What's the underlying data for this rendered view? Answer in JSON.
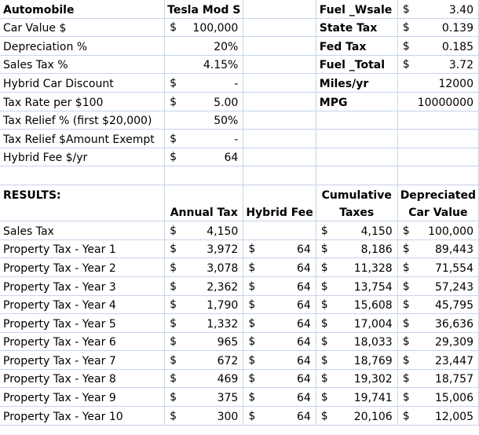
{
  "currency_symbol": "$",
  "top": {
    "automobile_label": "Automobile",
    "car_model": "Tesla Mod S",
    "rows": [
      {
        "label": "Car Value $",
        "sym": "$",
        "value": "100,000"
      },
      {
        "label": "Depreciation %",
        "sym": "",
        "value": "20%"
      },
      {
        "label": "Sales Tax %",
        "sym": "",
        "value": "4.15%"
      },
      {
        "label": "Hybrid Car Discount",
        "sym": "$",
        "value": "-"
      },
      {
        "label": "Tax Rate per $100",
        "sym": "$",
        "value": "5.00"
      },
      {
        "label": "Tax Relief % (first $20,000)",
        "sym": "",
        "value": "50%"
      },
      {
        "label": "Tax Relief $Amount Exempt",
        "sym": "$",
        "value": "-"
      },
      {
        "label": "Hybrid Fee $/yr",
        "sym": "$",
        "value": "64"
      }
    ],
    "fuel": [
      {
        "label": "Fuel _Wsale",
        "sym": "$",
        "value": "3.40"
      },
      {
        "label": "State Tax",
        "sym": "$",
        "value": "0.139"
      },
      {
        "label": "Fed Tax",
        "sym": "$",
        "value": "0.185"
      },
      {
        "label": "Fuel _Total",
        "sym": "$",
        "value": "3.72"
      },
      {
        "label": "Miles/yr",
        "sym": "",
        "value": "12000"
      },
      {
        "label": "MPG",
        "sym": "",
        "value": "10000000"
      }
    ]
  },
  "results": {
    "label": "RESULTS:",
    "headers": {
      "annual_tax": "Annual Tax",
      "hybrid_fee": "Hybrid Fee",
      "cumulative_top": "Cumulative",
      "cumulative_bottom": "Taxes",
      "depreciated_top": "Depreciated",
      "depreciated_bottom": "Car Value"
    },
    "rows": [
      {
        "label": "Sales Tax",
        "annual": "4,150",
        "fee": "",
        "cum": "4,150",
        "dep": "100,000"
      },
      {
        "label": "Property Tax - Year 1",
        "annual": "3,972",
        "fee": "64",
        "cum": "8,186",
        "dep": "89,443"
      },
      {
        "label": "Property Tax - Year 2",
        "annual": "3,078",
        "fee": "64",
        "cum": "11,328",
        "dep": "71,554"
      },
      {
        "label": "Property Tax - Year 3",
        "annual": "2,362",
        "fee": "64",
        "cum": "13,754",
        "dep": "57,243"
      },
      {
        "label": "Property Tax - Year 4",
        "annual": "1,790",
        "fee": "64",
        "cum": "15,608",
        "dep": "45,795"
      },
      {
        "label": "Property Tax - Year 5",
        "annual": "1,332",
        "fee": "64",
        "cum": "17,004",
        "dep": "36,636"
      },
      {
        "label": "Property Tax - Year 6",
        "annual": "965",
        "fee": "64",
        "cum": "18,033",
        "dep": "29,309"
      },
      {
        "label": "Property Tax - Year 7",
        "annual": "672",
        "fee": "64",
        "cum": "18,769",
        "dep": "23,447"
      },
      {
        "label": "Property Tax - Year 8",
        "annual": "469",
        "fee": "64",
        "cum": "19,302",
        "dep": "18,757"
      },
      {
        "label": "Property Tax - Year 9",
        "annual": "375",
        "fee": "64",
        "cum": "19,741",
        "dep": "15,006"
      },
      {
        "label": "Property Tax - Year 10",
        "annual": "300",
        "fee": "64",
        "cum": "20,106",
        "dep": "12,005"
      }
    ]
  }
}
